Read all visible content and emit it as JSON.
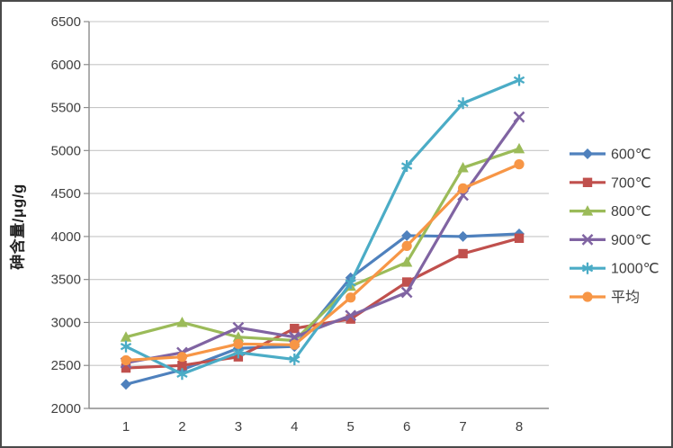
{
  "window": {
    "title": ""
  },
  "styles": {
    "gridline_color": "#c6c6c6",
    "axis_color": "#8c8c8c",
    "tick_text_color": "#3f3f3f",
    "frame_border_color": "#4a4a4a",
    "background": "#ffffff"
  },
  "chart_data": {
    "type": "line",
    "title": "",
    "xlabel": "",
    "ylabel": "砷含量/μg/g",
    "categories": [
      "1",
      "2",
      "3",
      "4",
      "5",
      "6",
      "7",
      "8"
    ],
    "series": [
      {
        "name": "600℃",
        "color": "#4F81BD",
        "marker": "diamond",
        "values": [
          2280,
          2450,
          2700,
          2720,
          3520,
          4010,
          4000,
          4030
        ]
      },
      {
        "name": "700℃",
        "color": "#C0504D",
        "marker": "square",
        "values": [
          2470,
          2500,
          2600,
          2930,
          3040,
          3470,
          3800,
          3980
        ]
      },
      {
        "name": "800℃",
        "color": "#9BBB59",
        "marker": "triangle",
        "values": [
          2830,
          3000,
          2830,
          2790,
          3420,
          3700,
          4800,
          5020
        ]
      },
      {
        "name": "900℃",
        "color": "#8064A2",
        "marker": "x",
        "values": [
          2530,
          2650,
          2940,
          2830,
          3080,
          3350,
          4480,
          5390
        ]
      },
      {
        "name": "1000℃",
        "color": "#4BACC6",
        "marker": "asterisk",
        "values": [
          2720,
          2400,
          2650,
          2570,
          3460,
          4820,
          5550,
          5820
        ]
      },
      {
        "name": "平均",
        "color": "#F79646",
        "marker": "circle",
        "values": [
          2560,
          2600,
          2750,
          2740,
          3290,
          3890,
          4560,
          4840
        ]
      }
    ],
    "ylim": [
      2000,
      6500
    ],
    "y_tick_step": 500,
    "y_tick_labels": [
      "2000",
      "2500",
      "3000",
      "3500",
      "4000",
      "4500",
      "5000",
      "5500",
      "6000",
      "6500"
    ],
    "x_tick_labels": [
      "1",
      "2",
      "3",
      "4",
      "5",
      "6",
      "7",
      "8"
    ],
    "grid": "horizontal",
    "legend_position": "right"
  }
}
